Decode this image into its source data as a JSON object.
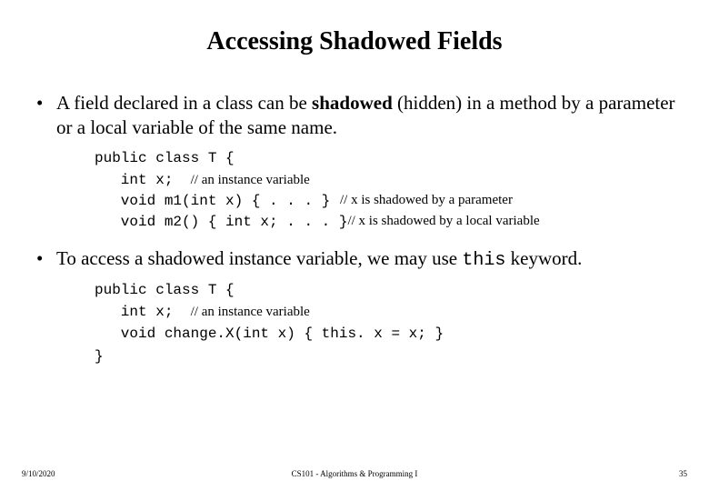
{
  "title": "Accessing Shadowed Fields",
  "bullets": {
    "b1": {
      "pre": "A field declared in a class can be ",
      "bold": "shadowed",
      "post": " (hidden) in a method by a parameter or a local variable of the same name."
    },
    "b2": {
      "pre": "To access a shadowed instance variable, we may use ",
      "mono": "this",
      "post": " keyword."
    }
  },
  "code1": {
    "l1": "public class T {",
    "l2a": "   int x;  ",
    "l2b": "// an instance variable",
    "l3a": "   void m1(int x) { . . . }",
    "l3b": "// x is shadowed by a parameter",
    "l4a": "   void m2() { int x; . . . }",
    "l4b": "// x is shadowed by a local variable"
  },
  "code2": {
    "l1": "public class T {",
    "l2a": "   int x;  ",
    "l2b": "// an instance variable",
    "l3": "   void change.X(int x) { this. x = x; }",
    "l4": "}"
  },
  "footer": {
    "date": "9/10/2020",
    "course": "CS101 - Algorithms & Programming I",
    "page": "35"
  }
}
